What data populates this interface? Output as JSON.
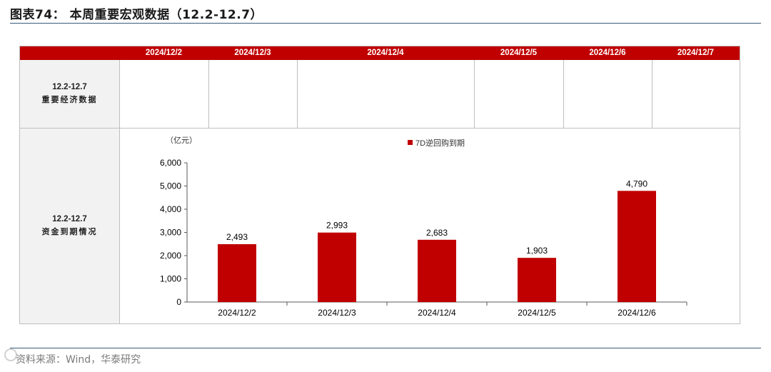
{
  "figure": {
    "title": "图表74： 本周重要宏观数据（12.2-12.7）"
  },
  "table": {
    "header_dates": [
      "2024/12/2",
      "2024/12/3",
      "2024/12/4",
      "2024/12/5",
      "2024/12/6",
      "2024/12/7"
    ],
    "row1": {
      "line1": "12.2-12.7",
      "line2": "重要经济数据"
    },
    "row2": {
      "line1": "12.2-12.7",
      "line2": "资金到期情况"
    }
  },
  "chart_data": {
    "type": "bar",
    "unit_label": "（亿元）",
    "categories": [
      "2024/12/2",
      "2024/12/3",
      "2024/12/4",
      "2024/12/5",
      "2024/12/6"
    ],
    "series": [
      {
        "name": "7D逆回购到期",
        "values": [
          2493,
          2993,
          2683,
          1903,
          4790
        ],
        "labels": [
          "2,493",
          "2,993",
          "2,683",
          "1,903",
          "4,790"
        ]
      }
    ],
    "y_ticks": [
      0,
      1000,
      2000,
      3000,
      4000,
      5000,
      6000
    ],
    "y_tick_labels": [
      "0",
      "1,000",
      "2,000",
      "3,000",
      "4,000",
      "5,000",
      "6,000"
    ],
    "ylim": [
      0,
      6000
    ],
    "legend_position": "top-center",
    "grid": false,
    "color": "#c00000"
  },
  "footer": {
    "source": "资料来源：Wind，华泰研究"
  }
}
